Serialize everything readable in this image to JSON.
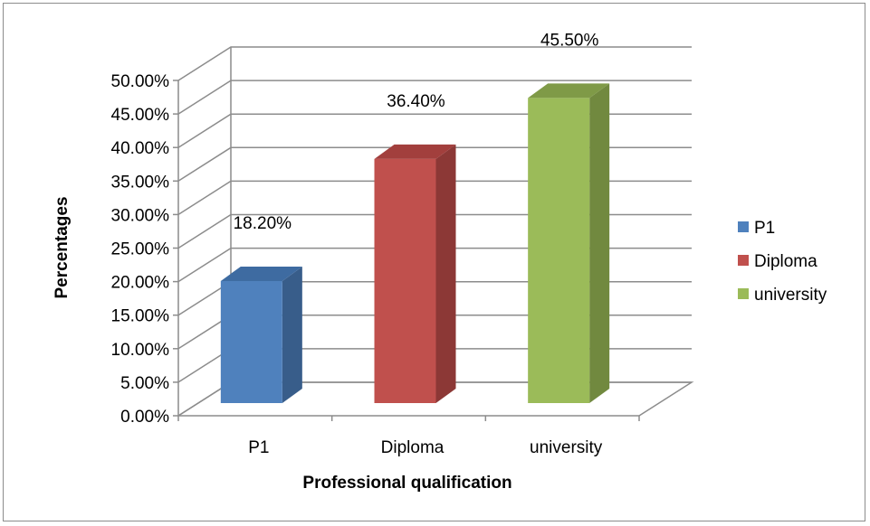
{
  "chart_data": {
    "type": "bar",
    "style": "3d-clustered-column",
    "categories": [
      "P1",
      "Diploma",
      "university"
    ],
    "values": [
      18.2,
      36.4,
      45.5
    ],
    "data_labels": [
      "18.20%",
      "36.40%",
      "45.50%"
    ],
    "colors": [
      "#4F81BD",
      "#C0504D",
      "#9BBB59"
    ],
    "side_colors": [
      "#385D8A",
      "#8C3836",
      "#71893F"
    ],
    "top_colors": [
      "#3E6BA1",
      "#A23F3D",
      "#7F9A47"
    ],
    "xlabel": "Professional qualification",
    "ylabel": "Percentages",
    "ylim": [
      0,
      50
    ],
    "yticks": [
      0,
      5,
      10,
      15,
      20,
      25,
      30,
      35,
      40,
      45,
      50
    ],
    "ytick_labels": [
      "0.00%",
      "5.00%",
      "10.00%",
      "15.00%",
      "20.00%",
      "25.00%",
      "30.00%",
      "35.00%",
      "40.00%",
      "45.00%",
      "50.00%"
    ],
    "grid": true,
    "legend": {
      "placement": "right",
      "entries": [
        "P1",
        "Diploma",
        "university"
      ]
    }
  }
}
